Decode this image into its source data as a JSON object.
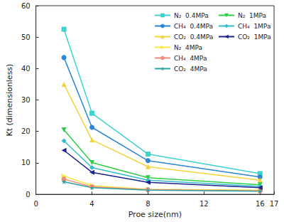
{
  "chart_data": {
    "type": "line",
    "x_label": "Proe size(nm)",
    "y_label": "Kt (dimensionless)",
    "xlim": [
      0,
      17
    ],
    "xticks": [
      0,
      4,
      8,
      12,
      16
    ],
    "ylim": [
      0,
      60
    ],
    "yticks": [
      0,
      10,
      20,
      30,
      40,
      50,
      60
    ],
    "grid": false,
    "legend": "upper right",
    "x": [
      2,
      4,
      8,
      16
    ],
    "series": [
      {
        "name": "N₂  0.4MPa",
        "color": "#3dd3cf",
        "marker": "square",
        "values": [
          52.5,
          25.8,
          12.8,
          6.6
        ]
      },
      {
        "name": "CH₄  0.4MPa",
        "color": "#2a86d6",
        "marker": "circle",
        "values": [
          43.5,
          21.3,
          10.7,
          5.5
        ]
      },
      {
        "name": "CO₂  0.4MPa",
        "color": "#f2d33c",
        "marker": "triangle",
        "values": [
          35.0,
          17.3,
          8.8,
          4.5
        ]
      },
      {
        "name": "N₂  4MPa",
        "color": "#f7e84a",
        "marker": "triangle-right",
        "values": [
          5.8,
          2.8,
          1.6,
          1.3
        ]
      },
      {
        "name": "CH₄  4MPa",
        "color": "#f38a7a",
        "marker": "circle",
        "values": [
          4.8,
          2.4,
          1.5,
          1.1
        ]
      },
      {
        "name": "CO₂  4MPa",
        "color": "#2aa3a3",
        "marker": "star",
        "values": [
          4.0,
          2.1,
          1.3,
          1.0
        ]
      },
      {
        "name": "N₂  1MPa",
        "color": "#2fcf45",
        "marker": "triangle-down",
        "values": [
          20.5,
          10.1,
          5.3,
          3.0
        ]
      },
      {
        "name": "CH₄  1MPa",
        "color": "#33bccb",
        "marker": "diamond",
        "values": [
          17.0,
          8.5,
          4.5,
          2.5
        ]
      },
      {
        "name": "CO₂  1MPa",
        "color": "#1d2290",
        "marker": "triangle-left",
        "values": [
          14.0,
          7.0,
          3.8,
          2.1
        ]
      }
    ]
  }
}
